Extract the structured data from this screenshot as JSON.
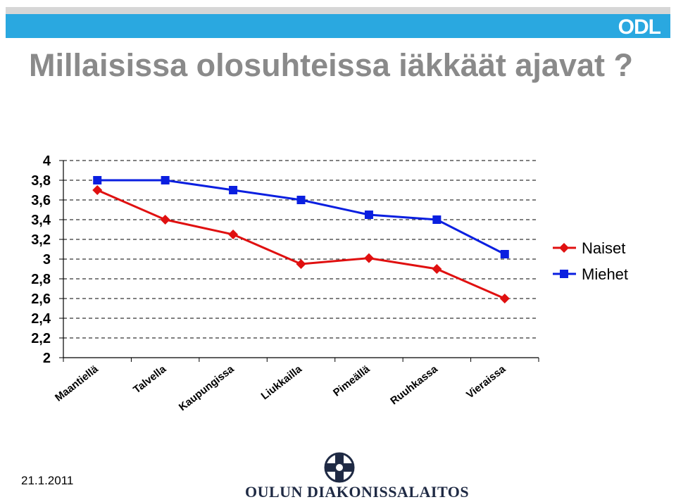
{
  "header": {
    "brand": "ODL"
  },
  "title": "Millaisissa olosuhteissa iäkkäät ajavat ?",
  "footer": {
    "date": "21.1.2011",
    "organization": "Oulun Diakonissalaitos"
  },
  "colors": {
    "naiset": "#e01010",
    "miehet": "#0a1fe0",
    "title": "#8a8a8a",
    "header_bar": "#2aa8e0"
  },
  "chart_data": {
    "type": "line",
    "title": "",
    "xlabel": "",
    "ylabel": "",
    "categories": [
      "Maantiellä",
      "Talvella",
      "Kaupungissa",
      "Liukkailla",
      "Pimeällä",
      "Ruuhkassa",
      "Vieraissa"
    ],
    "ylim": [
      2,
      4
    ],
    "yticks": [
      "2",
      "2,2",
      "2,4",
      "2,6",
      "2,8",
      "3",
      "3,2",
      "3,4",
      "3,6",
      "3,8",
      "4"
    ],
    "grid": true,
    "legend_position": "right",
    "series": [
      {
        "name": "Naiset",
        "color": "#e01010",
        "marker": "diamond",
        "values": [
          3.7,
          3.4,
          3.25,
          2.95,
          3.01,
          2.9,
          2.6
        ]
      },
      {
        "name": "Miehet",
        "color": "#0a1fe0",
        "marker": "square",
        "values": [
          3.8,
          3.8,
          3.7,
          3.6,
          3.45,
          3.4,
          3.05
        ]
      }
    ]
  }
}
